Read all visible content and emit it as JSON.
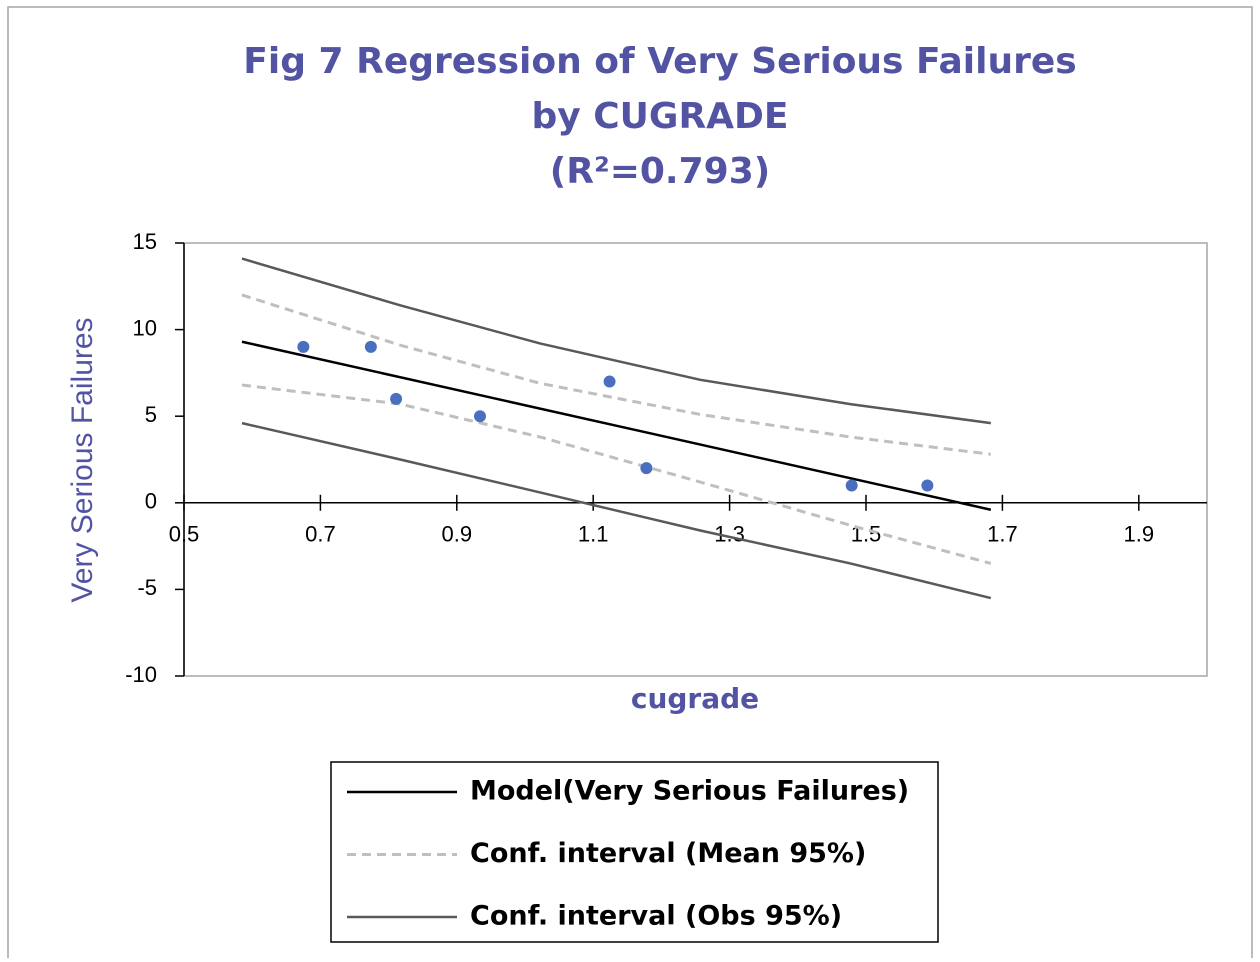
{
  "chart_data": {
    "type": "scatter",
    "title_lines": [
      "Fig 7 Regression of Very Serious Failures",
      "by CUGRADE",
      "(R²=0.793)"
    ],
    "x_label": "cugrade",
    "y_label": "Very Serious Failures",
    "xlim": [
      0.5,
      2.0
    ],
    "ylim": [
      -10,
      15
    ],
    "xticks": [
      0.5,
      0.7,
      0.9,
      1.1,
      1.3,
      1.5,
      1.7,
      1.9
    ],
    "yticks": [
      15,
      10,
      5,
      0,
      -5,
      -10
    ],
    "points": {
      "color": "#4a6fbf",
      "x": [
        0.675,
        0.774,
        0.811,
        0.934,
        1.124,
        1.178,
        1.479,
        1.59
      ],
      "values": [
        9,
        9,
        6,
        5,
        7,
        2,
        1,
        1
      ]
    },
    "series": [
      {
        "name": "Model(Very Serious Failures)",
        "color": "#000000",
        "dashed": false,
        "x": [
          0.585,
          1.683
        ],
        "values": [
          9.3,
          -0.4
        ]
      },
      {
        "name": "Conf. interval (Mean 95%)",
        "color": "#bfbfbf",
        "dashed": true,
        "x": [
          0.585,
          0.817,
          1.022,
          1.257,
          1.477,
          1.683
        ],
        "upper": [
          12.0,
          9.1,
          6.9,
          5.1,
          3.8,
          2.8
        ],
        "lower": [
          6.8,
          5.7,
          3.8,
          1.2,
          -1.3,
          -3.5
        ]
      },
      {
        "name": "Conf. interval (Obs 95%)",
        "color": "#595959",
        "dashed": false,
        "x": [
          0.585,
          0.817,
          1.022,
          1.257,
          1.477,
          1.683
        ],
        "upper": [
          14.1,
          11.4,
          9.2,
          7.1,
          5.7,
          4.6
        ],
        "lower": [
          4.6,
          2.5,
          0.6,
          -1.6,
          -3.5,
          -5.5
        ]
      }
    ]
  }
}
